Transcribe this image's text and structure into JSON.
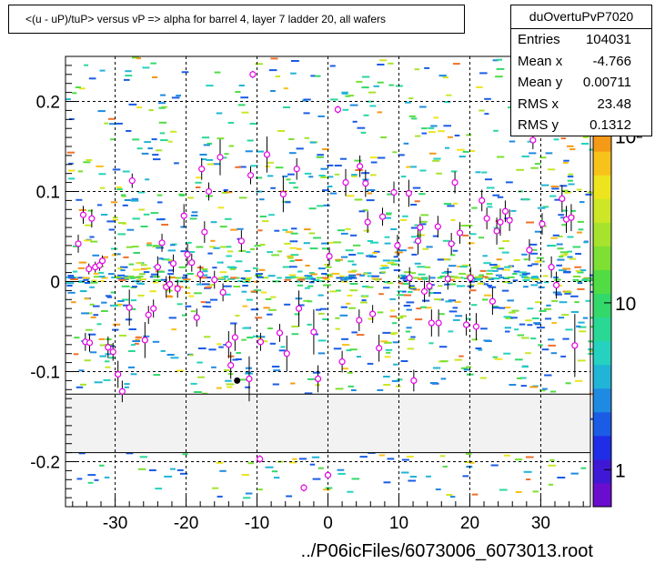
{
  "chart_data": {
    "type": "scatter",
    "title": "<(u - uP)/tuP> versus   vP => alpha for barrel 4, layer 7 ladder 20, all wafers",
    "xlabel": "../P06icFiles/6073006_6073013.root",
    "ylabel": "",
    "xlim": [
      -37,
      37
    ],
    "ylim": [
      -0.25,
      0.25
    ],
    "x_ticks": [
      -30,
      -20,
      -10,
      0,
      10,
      20,
      30
    ],
    "x_tick_labels": [
      "-30",
      "-20",
      "-10",
      "0",
      "10",
      "20",
      "30"
    ],
    "y_ticks": [
      -0.2,
      -0.1,
      0,
      0.1,
      0.2
    ],
    "y_tick_labels": [
      "-0.2",
      "-0.1",
      "0",
      "0.1",
      "0.2"
    ],
    "excluded_band": [
      -0.19,
      -0.125
    ],
    "grid": true,
    "color_scale": {
      "log": true,
      "tick_labels": [
        "1",
        "10",
        "10²"
      ],
      "tick_values": [
        1,
        10,
        100
      ],
      "range": [
        0.6,
        300
      ]
    },
    "series": [
      {
        "values": [
          [
            -34.5,
            0.074,
            0.01
          ],
          [
            -35.2,
            0.042,
            0.01
          ],
          [
            -34.2,
            -0.067,
            0.01
          ],
          [
            -33.6,
            -0.068,
            0.01
          ],
          [
            -33.3,
            0.07,
            0.01
          ],
          [
            -33.7,
            0.014,
            0.006
          ],
          [
            -32.8,
            0.016,
            0.006
          ],
          [
            -32.2,
            0.018,
            0.006
          ],
          [
            -31.8,
            0.023,
            0.006
          ],
          [
            -31.0,
            -0.073,
            0.012
          ],
          [
            -30.3,
            -0.078,
            0.01
          ],
          [
            -29.6,
            -0.103,
            0.015
          ],
          [
            -29.0,
            -0.122,
            0.012
          ],
          [
            -28.0,
            -0.029,
            0.02
          ],
          [
            -27.6,
            0.112,
            0.008
          ],
          [
            -25.8,
            -0.065,
            0.02
          ],
          [
            -25.3,
            -0.037,
            0.01
          ],
          [
            -24.6,
            -0.03,
            0.01
          ],
          [
            -24.0,
            0.016,
            0.012
          ],
          [
            -23.4,
            0.043,
            0.01
          ],
          [
            -22.8,
            -0.006,
            0.012
          ],
          [
            -22.3,
            -0.003,
            0.01
          ],
          [
            -21.8,
            0.02,
            0.01
          ],
          [
            -21.2,
            -0.008,
            0.01
          ],
          [
            -20.3,
            0.073,
            0.013
          ],
          [
            -19.8,
            0.03,
            0.012
          ],
          [
            -19.2,
            0.021,
            0.01
          ],
          [
            -18.5,
            -0.04,
            0.01
          ],
          [
            -18.0,
            0.008,
            0.01
          ],
          [
            -17.8,
            0.125,
            0.012
          ],
          [
            -17.4,
            0.055,
            0.012
          ],
          [
            -16.8,
            0.1,
            0.01
          ],
          [
            -16.0,
            0.002,
            0.01
          ],
          [
            -15.2,
            0.138,
            0.02
          ],
          [
            -14.8,
            -0.012,
            0.01
          ],
          [
            -14.0,
            -0.07,
            0.015
          ],
          [
            -13.7,
            -0.093,
            0.015
          ],
          [
            -13.1,
            -0.062,
            0.015
          ],
          [
            -12.2,
            0.045,
            0.012
          ],
          [
            -11.1,
            -0.108,
            0.025
          ],
          [
            -10.6,
            0.23,
            0.004
          ],
          [
            -9.5,
            -0.067,
            0.01
          ],
          [
            -8.6,
            0.141,
            0.02
          ],
          [
            -6.8,
            -0.057,
            0.01
          ],
          [
            -6.3,
            0.097,
            0.02
          ],
          [
            -5.8,
            -0.08,
            0.02
          ],
          [
            -4.4,
            0.125,
            0.012
          ],
          [
            -4.1,
            -0.03,
            0.02
          ],
          [
            -2.0,
            -0.056,
            0.025
          ],
          [
            -1.4,
            -0.108,
            0.015
          ],
          [
            0.2,
            0.028,
            0.01
          ],
          [
            1.4,
            0.191,
            0.004
          ],
          [
            2.0,
            -0.089,
            0.012
          ],
          [
            2.5,
            0.11,
            0.015
          ],
          [
            4.5,
            0.128,
            0.012
          ],
          [
            4.4,
            -0.043,
            0.012
          ],
          [
            5.3,
            0.109,
            0.015
          ],
          [
            5.6,
            0.066,
            0.012
          ],
          [
            6.3,
            -0.036,
            0.01
          ],
          [
            7.2,
            -0.074,
            0.015
          ],
          [
            7.7,
            0.072,
            0.01
          ],
          [
            9.3,
            0.099,
            0.012
          ],
          [
            9.8,
            0.04,
            0.012
          ],
          [
            11.4,
            0.098,
            0.015
          ],
          [
            11.5,
            0.004,
            0.012
          ],
          [
            12.1,
            -0.11,
            0.012
          ],
          [
            12.7,
            0.045,
            0.015
          ],
          [
            13.0,
            0.06,
            0.012
          ],
          [
            13.6,
            -0.011,
            0.012
          ],
          [
            14.3,
            -0.005,
            0.012
          ],
          [
            14.6,
            -0.046,
            0.015
          ],
          [
            15.6,
            -0.046,
            0.015
          ],
          [
            15.5,
            0.061,
            0.012
          ],
          [
            16.9,
            0.003,
            0.012
          ],
          [
            17.4,
            0.042,
            0.012
          ],
          [
            17.9,
            0.11,
            0.012
          ],
          [
            18.6,
            0.054,
            0.012
          ],
          [
            19.5,
            -0.048,
            0.012
          ],
          [
            20.1,
            0.004,
            0.012
          ],
          [
            20.9,
            -0.05,
            0.015
          ],
          [
            21.7,
            0.09,
            0.012
          ],
          [
            22.4,
            0.07,
            0.012
          ],
          [
            23.2,
            -0.022,
            0.015
          ],
          [
            23.8,
            0.056,
            0.015
          ],
          [
            24.3,
            0.066,
            0.015
          ],
          [
            25.0,
            0.078,
            0.012
          ],
          [
            25.6,
            0.068,
            0.012
          ],
          [
            28.4,
            0.035,
            0.012
          ],
          [
            28.9,
            0.157,
            0.01
          ],
          [
            30.2,
            0.064,
            0.012
          ],
          [
            31.5,
            0.016,
            0.012
          ],
          [
            32.2,
            -0.004,
            0.015
          ],
          [
            33.0,
            0.092,
            0.015
          ],
          [
            33.6,
            0.069,
            0.015
          ],
          [
            34.3,
            0.071,
            0.015
          ],
          [
            34.8,
            -0.071,
            0.035
          ],
          [
            -9.6,
            -0.197,
            0.004
          ],
          [
            -3.4,
            -0.229,
            0.004
          ],
          [
            0.0,
            -0.215,
            0.004
          ],
          [
            -10.9,
            0.118,
            0.01
          ]
        ]
      }
    ],
    "marker_color": "#e600e6",
    "black_point": [
      -12.8,
      -0.11
    ]
  },
  "stats": {
    "name": "duOvertuPvP7020",
    "rows": [
      {
        "label": "Entries",
        "value": "104031"
      },
      {
        "label": "Mean x",
        "value": "-4.766"
      },
      {
        "label": "Mean y",
        "value": "0.00711"
      },
      {
        "label": "RMS x",
        "value": "23.48"
      },
      {
        "label": "RMS y",
        "value": "0.1312"
      }
    ]
  }
}
